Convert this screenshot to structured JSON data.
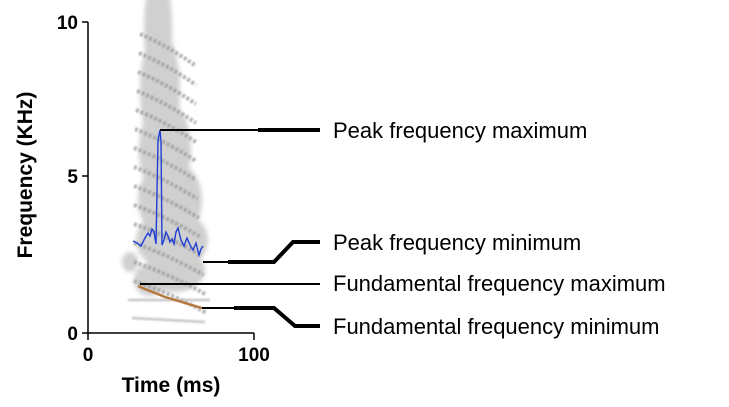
{
  "y_axis": {
    "title": "Frequency (KHz)",
    "ticks": [
      "10",
      "5",
      "0"
    ]
  },
  "x_axis": {
    "title": "Time (ms)",
    "ticks": [
      "0",
      "100"
    ]
  },
  "annotations": {
    "peak_max": "Peak frequency maximum",
    "peak_min": "Peak frequency minimum",
    "fund_max": "Fundamental frequency maximum",
    "fund_min": "Fundamental frequency minimum"
  },
  "colors": {
    "peak_trace": "#1f3fd6",
    "fundamental_trace": "#b5763a",
    "spectrogram": "#9a9a9a",
    "leader_lines": "#000000"
  }
}
